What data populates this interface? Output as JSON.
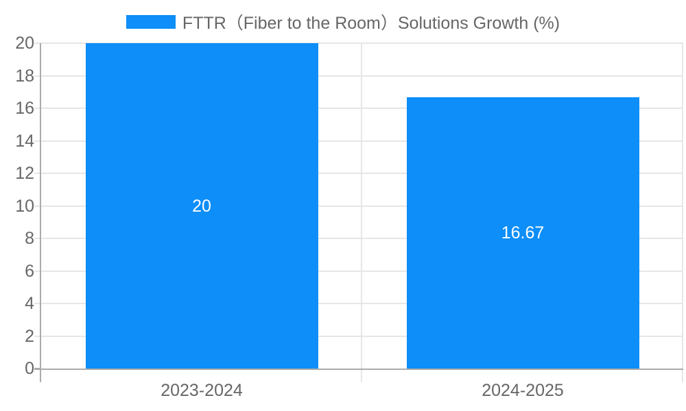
{
  "legend": {
    "label": "FTTR（Fiber to the Room）Solutions Growth (%)"
  },
  "chart_data": {
    "type": "bar",
    "title": "FTTR（Fiber to the Room）Solutions Growth (%)",
    "categories": [
      "2023-2024",
      "2024-2025"
    ],
    "values": [
      20,
      16.67
    ],
    "data_labels": [
      "20",
      "16.67"
    ],
    "xlabel": "",
    "ylabel": "",
    "ylim": [
      0,
      20
    ],
    "yticks": [
      0,
      2,
      4,
      6,
      8,
      10,
      12,
      14,
      16,
      18,
      20
    ],
    "grid": true,
    "legend_position": "top-center",
    "bar_color": "#0d8ef8",
    "bar_label_color": "#ffffff",
    "grid_color": "#e6e6e6",
    "axis_color": "#ababab",
    "tick_text_color": "#666666"
  }
}
